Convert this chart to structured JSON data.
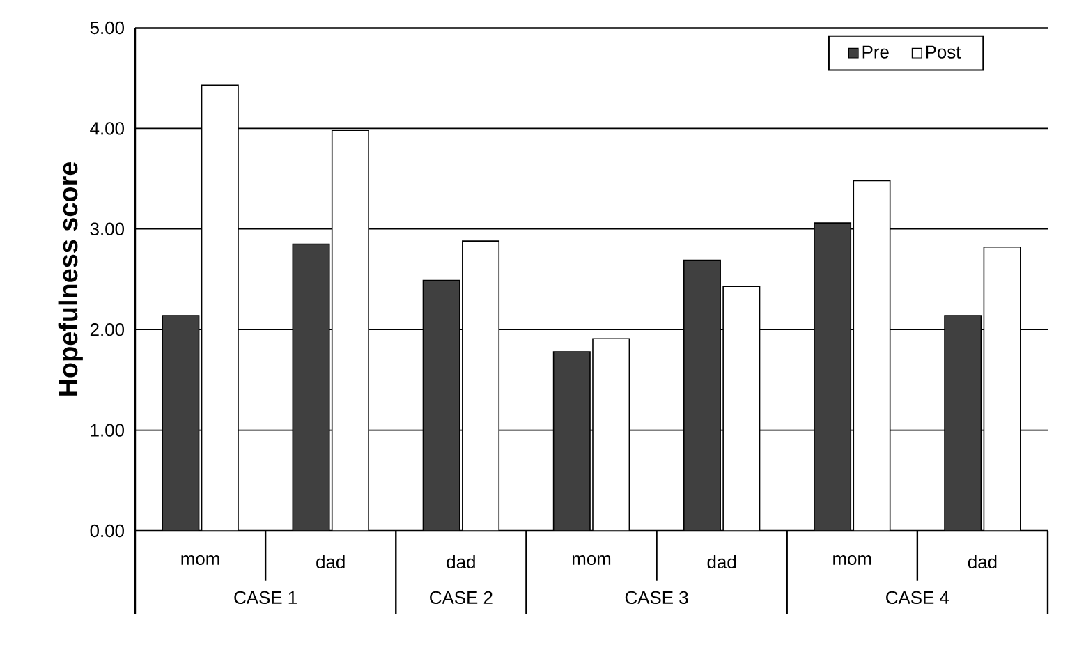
{
  "chart_data": {
    "type": "bar",
    "ylabel": "Hopefulness score",
    "categories": [
      "mom",
      "dad",
      "dad",
      "mom",
      "dad",
      "mom",
      "dad"
    ],
    "series": [
      {
        "name": "Pre",
        "color": "#404040",
        "values": [
          2.14,
          2.85,
          2.49,
          1.78,
          2.69,
          3.06,
          2.14
        ]
      },
      {
        "name": "Post",
        "color": "#ffffff",
        "values": [
          4.43,
          3.98,
          2.88,
          1.91,
          2.43,
          3.48,
          2.82
        ]
      }
    ],
    "ylim": [
      0,
      5
    ],
    "yticks": [
      {
        "value": 0,
        "label": "0.00"
      },
      {
        "value": 1,
        "label": "1.00"
      },
      {
        "value": 2,
        "label": "2.00"
      },
      {
        "value": 3,
        "label": "3.00"
      },
      {
        "value": 4,
        "label": "4.00"
      },
      {
        "value": 5,
        "label": "5.00"
      }
    ],
    "grid": "y",
    "legend": "top right",
    "annotations": [
      "CASE 1",
      "CASE 2",
      "CASE 3",
      "CASE 4"
    ]
  }
}
